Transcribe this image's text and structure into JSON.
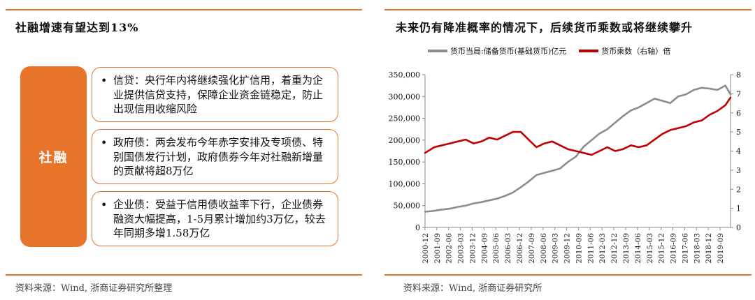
{
  "left_panel": {
    "title": "社融增速有望达到13%",
    "label": "社融",
    "bullets": [
      "信贷：央行年内将继续强化扩信用，着重为企业提供信贷支持，保障企业资金链稳定，防止出现信用收缩风险",
      "政府债：两会发布今年赤字安排及专项债、特别国债发行计划，政府债券今年对社融新增量的贡献将超8万亿",
      "企业债：受益于信用债收益率下行，企业债券融资大幅提高，1-5月累计增加约3万亿，较去年同期多增1.58万亿"
    ],
    "bullet_symbol": "•",
    "source": "资料来源：Wind, 浙商证券研究所整理"
  },
  "right_panel": {
    "title": "未来仍有降准概率的情况下，后续货币乘数或将继续攀升",
    "source": "资料来源：Wind, 浙商证券研究所"
  },
  "colors": {
    "accent": "#e8732a",
    "gray_series": "#8c8c8c",
    "red_series": "#c00000"
  },
  "chart_data": {
    "type": "line",
    "title": "未来仍有降准概率的情况下，后续货币乘数或将继续攀升",
    "legend_position": "top",
    "grid": false,
    "x_tick_labels": [
      "2000-12",
      "2001-09",
      "2002-06",
      "2003-03",
      "2003-12",
      "2004-09",
      "2005-06",
      "2006-03",
      "2006-12",
      "2007-09",
      "2008-06",
      "2009-03",
      "2009-12",
      "2010-09",
      "2011-06",
      "2012-03",
      "2012-12",
      "2013-09",
      "2014-06",
      "2015-03",
      "2015-12",
      "2016-09",
      "2017-06",
      "2018-03",
      "2018-12",
      "2019-09"
    ],
    "y_left": {
      "ticks": [
        "0",
        "50,000",
        "100,000",
        "150,000",
        "200,000",
        "250,000",
        "300,000",
        "350,000"
      ],
      "ylim": [
        0,
        350000
      ]
    },
    "y_right": {
      "ticks": [
        "0",
        "1",
        "2",
        "3",
        "4",
        "5",
        "6",
        "7",
        "8"
      ],
      "ylim": [
        0,
        8
      ]
    },
    "x": [
      2000.92,
      2001.5,
      2002.0,
      2002.5,
      2003.0,
      2003.5,
      2004.0,
      2004.5,
      2005.0,
      2005.5,
      2006.0,
      2006.5,
      2007.0,
      2007.5,
      2008.0,
      2008.5,
      2009.0,
      2009.5,
      2010.0,
      2010.5,
      2011.0,
      2011.5,
      2012.0,
      2012.5,
      2013.0,
      2013.5,
      2014.0,
      2014.5,
      2015.0,
      2015.5,
      2016.0,
      2016.5,
      2017.0,
      2017.5,
      2018.0,
      2018.5,
      2019.0,
      2019.5,
      2020.0,
      2020.33
    ],
    "series": [
      {
        "name": "货币当局:储备货币(基础货币)亿元",
        "axis": "left",
        "values": [
          36000,
          38000,
          41000,
          43000,
          47000,
          50000,
          55000,
          58000,
          62000,
          66000,
          72000,
          80000,
          92000,
          105000,
          120000,
          125000,
          130000,
          135000,
          150000,
          162000,
          185000,
          200000,
          215000,
          225000,
          240000,
          255000,
          268000,
          275000,
          285000,
          295000,
          290000,
          285000,
          300000,
          305000,
          315000,
          320000,
          318000,
          315000,
          325000,
          305000
        ]
      },
      {
        "name": "货币乘数（右轴）倍",
        "axis": "right",
        "values": [
          3.9,
          4.2,
          4.3,
          4.4,
          4.5,
          4.6,
          4.4,
          4.5,
          4.7,
          4.6,
          4.8,
          5.0,
          5.0,
          4.6,
          4.2,
          4.4,
          4.5,
          4.3,
          4.1,
          4.0,
          3.9,
          3.8,
          4.0,
          4.2,
          4.0,
          4.1,
          4.3,
          4.2,
          4.3,
          4.6,
          4.9,
          5.1,
          5.2,
          5.3,
          5.5,
          5.6,
          5.9,
          6.1,
          6.4,
          6.8
        ]
      }
    ]
  }
}
